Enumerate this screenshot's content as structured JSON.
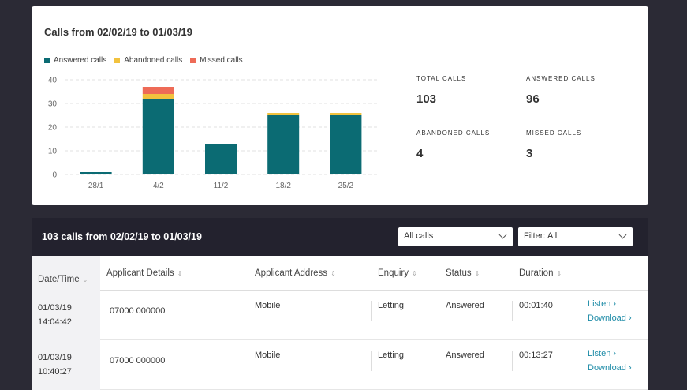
{
  "chart_card": {
    "title": "Calls from 02/02/19 to 01/03/19",
    "legend": [
      {
        "label": "Answered calls",
        "color": "#0b6b73"
      },
      {
        "label": "Abandoned calls",
        "color": "#f2c23e"
      },
      {
        "label": "Missed calls",
        "color": "#ee6b57"
      }
    ]
  },
  "chart_data": {
    "type": "bar",
    "stacked": true,
    "categories": [
      "28/1",
      "4/2",
      "11/2",
      "18/2",
      "25/2"
    ],
    "series": [
      {
        "name": "Answered calls",
        "color": "#0b6b73",
        "values": [
          1,
          32,
          13,
          25,
          25
        ]
      },
      {
        "name": "Abandoned calls",
        "color": "#f2c23e",
        "values": [
          0,
          2,
          0,
          1,
          1
        ]
      },
      {
        "name": "Missed calls",
        "color": "#ee6b57",
        "values": [
          0,
          3,
          0,
          0,
          0
        ]
      }
    ],
    "yticks": [
      0,
      10,
      20,
      30,
      40
    ],
    "ylim": [
      0,
      40
    ],
    "grid": true,
    "legend_position": "top-left"
  },
  "stats": {
    "total_label": "TOTAL CALLS",
    "total_value": "103",
    "answered_label": "ANSWERED CALLS",
    "answered_value": "96",
    "abandoned_label": "ABANDONED CALLS",
    "abandoned_value": "4",
    "missed_label": "MISSED CALLS",
    "missed_value": "3"
  },
  "calls_panel": {
    "title": "103 calls from 02/02/19 to 01/03/19",
    "type_filter_value": "All calls",
    "status_filter_value": "Filter: All",
    "columns": [
      "Date/Time",
      "Applicant Details",
      "Applicant Address",
      "Enquiry",
      "Status",
      "Duration"
    ],
    "rows": [
      {
        "date": "01/03/19",
        "time": "14:04:42",
        "phone": "07000 000000",
        "address": "Mobile",
        "enquiry": "Letting",
        "status": "Answered",
        "duration": "00:01:40",
        "listen": "Listen ›",
        "download": "Download ›"
      },
      {
        "date": "01/03/19",
        "time": "10:40:27",
        "phone": "07000 000000",
        "address": "Mobile",
        "enquiry": "Letting",
        "status": "Answered",
        "duration": "00:13:27",
        "listen": "Listen ›",
        "download": "Download ›"
      }
    ]
  }
}
